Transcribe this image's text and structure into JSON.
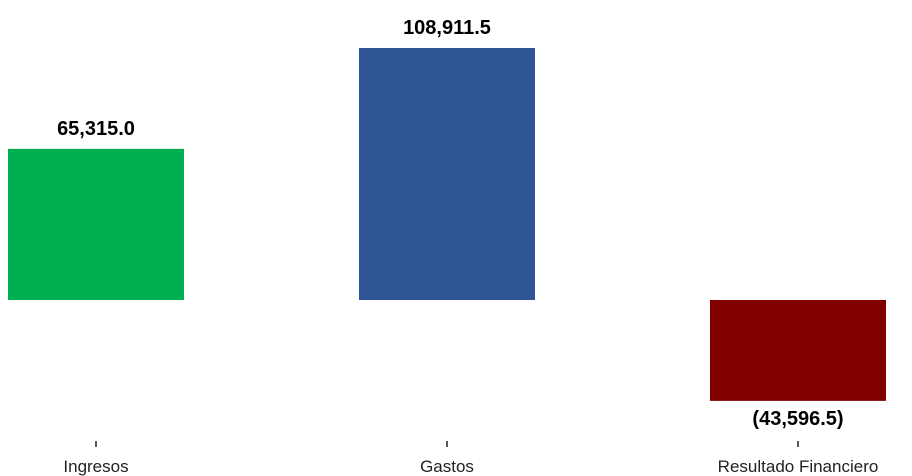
{
  "chart_data": {
    "type": "bar",
    "categories": [
      "Ingresos",
      "Gastos",
      "Resultado Financiero"
    ],
    "values": [
      65315.0,
      108911.5,
      -43596.5
    ],
    "value_labels": [
      "65,315.0",
      "108,911.5",
      "(43,596.5)"
    ],
    "colors": [
      "#00AF4F",
      "#2F5597",
      "#800000"
    ],
    "title": "",
    "xlabel": "",
    "ylabel": "",
    "grid": false,
    "legend": "none"
  }
}
